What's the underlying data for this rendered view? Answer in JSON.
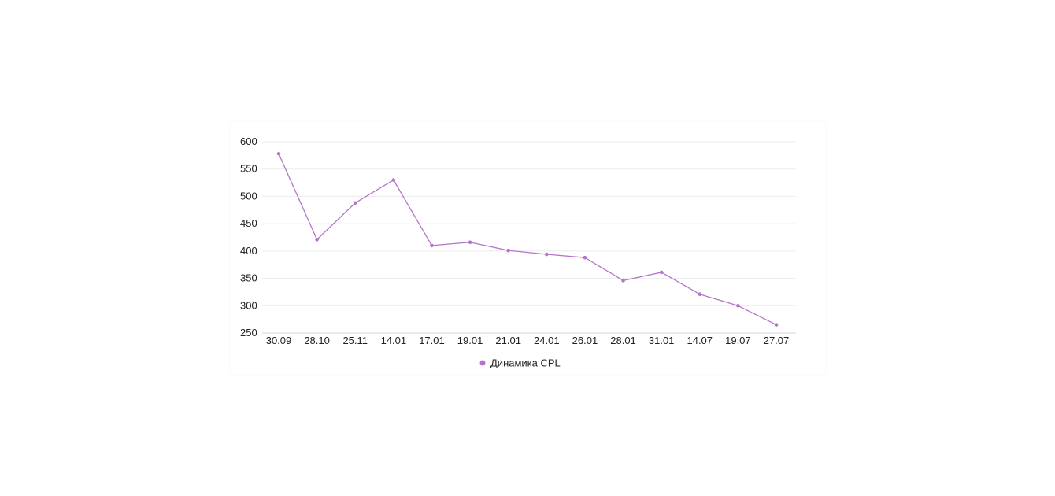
{
  "chart_data": {
    "type": "line",
    "title": "",
    "xlabel": "",
    "ylabel": "",
    "categories": [
      "30.09",
      "28.10",
      "25.11",
      "14.01",
      "17.01",
      "19.01",
      "21.01",
      "24.01",
      "26.01",
      "28.01",
      "31.01",
      "14.07",
      "19.07",
      "27.07"
    ],
    "y_ticks": [
      250,
      300,
      350,
      400,
      450,
      500,
      550,
      600
    ],
    "ylim": [
      250,
      600
    ],
    "grid": true,
    "legend_position": "bottom",
    "series": [
      {
        "name": "Динамика CPL",
        "color": "#b574c9",
        "values": [
          578,
          421,
          488,
          530,
          410,
          416,
          401,
          394,
          388,
          346,
          361,
          321,
          300,
          265
        ]
      }
    ]
  }
}
